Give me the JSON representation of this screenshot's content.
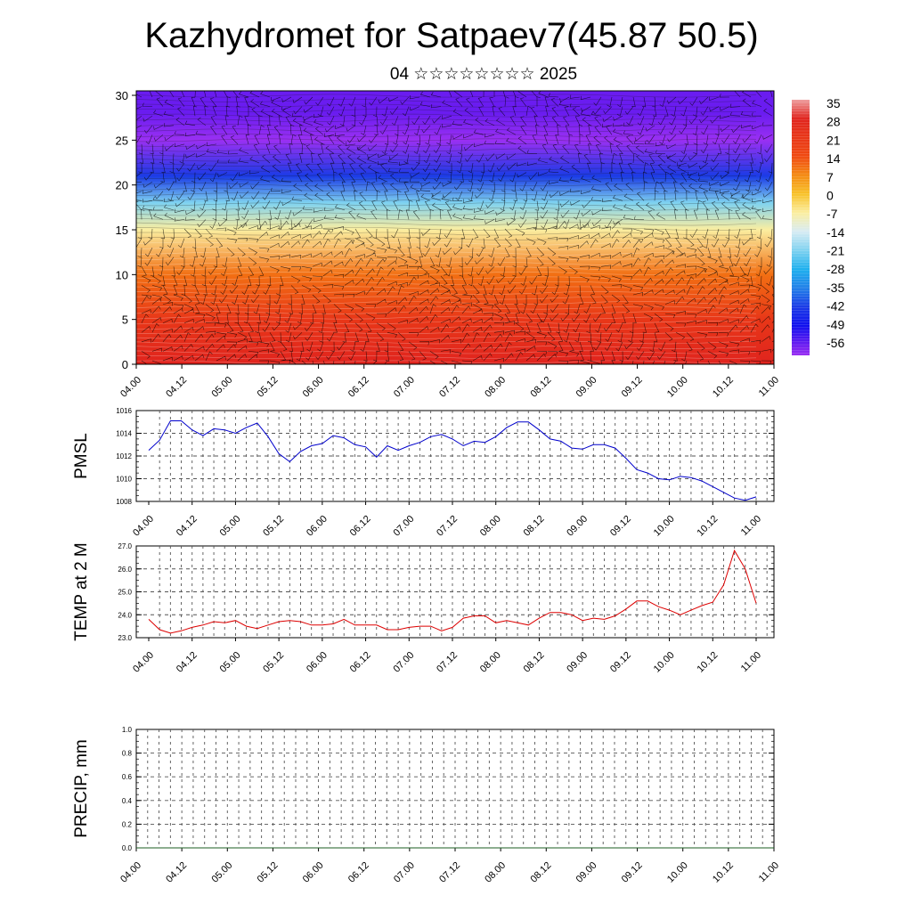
{
  "title": "Kazhydromet for Satpaev7(45.87 50.5)",
  "subtitle": "04 ☆☆☆☆☆☆☆☆ 2025",
  "time_labels": [
    "04.00",
    "04.12",
    "05.00",
    "05.12",
    "06.00",
    "06.12",
    "07.00",
    "07.12",
    "08.00",
    "08.12",
    "09.00",
    "09.12",
    "10.00",
    "10.12",
    "11.00"
  ],
  "chart_data": [
    {
      "type": "heatmap",
      "description_hidden": "",
      "x": [
        "04.00",
        "04.12",
        "05.00",
        "05.12",
        "06.00",
        "06.12",
        "07.00",
        "07.12",
        "08.00",
        "08.12",
        "09.00",
        "09.12",
        "10.00",
        "10.12",
        "11.00"
      ],
      "y_ticks": [
        0,
        5,
        10,
        15,
        20,
        25,
        30
      ],
      "ylim": [
        0,
        30.5
      ],
      "temperature_profile_by_height": [
        {
          "height": 0,
          "value": 28
        },
        {
          "height": 5,
          "value": 21
        },
        {
          "height": 10,
          "value": 10
        },
        {
          "height": 15,
          "value": -7
        },
        {
          "height": 18,
          "value": -21
        },
        {
          "height": 21,
          "value": -42
        },
        {
          "height": 25,
          "value": -60
        },
        {
          "height": 28,
          "value": -56
        },
        {
          "height": 30.5,
          "value": -56
        }
      ],
      "colorbar": {
        "labels": [
          "35",
          "28",
          "21",
          "14",
          "7",
          "0",
          "-7",
          "-14",
          "-21",
          "-28",
          "-35",
          "-42",
          "-49",
          "-56"
        ],
        "stops": [
          {
            "value": 35,
            "color": "#ee9e9e"
          },
          {
            "value": 28,
            "color": "#e0241e"
          },
          {
            "value": 14,
            "color": "#f04a12"
          },
          {
            "value": 7,
            "color": "#f48a14"
          },
          {
            "value": 0,
            "color": "#f8c22a"
          },
          {
            "value": -7,
            "color": "#fbeea0"
          },
          {
            "value": -14,
            "color": "#d8ecf4"
          },
          {
            "value": -21,
            "color": "#7fd2f0"
          },
          {
            "value": -28,
            "color": "#1eb0ee"
          },
          {
            "value": -35,
            "color": "#2280e8"
          },
          {
            "value": -42,
            "color": "#1b3be6"
          },
          {
            "value": -49,
            "color": "#1010ee"
          },
          {
            "value": -56,
            "color": "#6a1cf0"
          },
          {
            "value": -60,
            "color": "#9a30f2"
          }
        ]
      },
      "wind_barbs": "dense black wind barbs overlaid"
    },
    {
      "type": "line",
      "ylabel": "PMSL",
      "ylim": [
        1008,
        1016
      ],
      "y_ticks": [
        "1008",
        "1010",
        "1012",
        "1014",
        "1016"
      ],
      "color": "#0000cc",
      "series": [
        {
          "values": [
            1012.5,
            1013.4,
            1015.1,
            1015.1,
            1014.3,
            1013.8,
            1014.4,
            1014.3,
            1014.0,
            1014.5,
            1014.9,
            1013.7,
            1012.2,
            1011.5,
            1012.4,
            1012.9,
            1013.1,
            1013.8,
            1013.6,
            1013.0,
            1012.8,
            1011.9,
            1012.9,
            1012.5,
            1012.9,
            1013.2,
            1013.7,
            1013.9,
            1013.5,
            1012.9,
            1013.3,
            1013.2,
            1013.7,
            1014.5,
            1015.0,
            1015.0,
            1014.3,
            1013.5,
            1013.3,
            1012.7,
            1012.6,
            1013.0,
            1013.0,
            1012.7,
            1011.8,
            1010.8,
            1010.5,
            1010.0,
            1009.9,
            1010.2,
            1010.1,
            1009.8,
            1009.3,
            1008.8,
            1008.3,
            1008.1,
            1008.4
          ]
        }
      ]
    },
    {
      "type": "line",
      "ylabel": "TEMP at 2 M",
      "ylim": [
        23.0,
        27.0
      ],
      "y_ticks": [
        "23.0",
        "24.0",
        "25.0",
        "26.0",
        "27.0"
      ],
      "color": "#dd0000",
      "series": [
        {
          "values": [
            23.8,
            23.35,
            23.2,
            23.3,
            23.45,
            23.55,
            23.7,
            23.65,
            23.75,
            23.5,
            23.4,
            23.55,
            23.7,
            23.75,
            23.7,
            23.55,
            23.55,
            23.6,
            23.8,
            23.55,
            23.55,
            23.55,
            23.35,
            23.35,
            23.45,
            23.5,
            23.5,
            23.3,
            23.45,
            23.85,
            23.95,
            23.95,
            23.65,
            23.75,
            23.65,
            23.55,
            23.85,
            24.1,
            24.1,
            24.0,
            23.75,
            23.85,
            23.8,
            23.95,
            24.25,
            24.6,
            24.6,
            24.35,
            24.2,
            24.0,
            24.2,
            24.4,
            24.55,
            25.3,
            26.8,
            26.0,
            24.5
          ]
        }
      ]
    },
    {
      "type": "line",
      "ylabel": "PRECIP, mm",
      "ylim": [
        0.0,
        1.0
      ],
      "y_ticks": [
        "0.0",
        "0.2",
        "0.4",
        "0.6",
        "0.8",
        "1.0"
      ],
      "color": "#1b5e20",
      "series": [
        {
          "values": [
            0,
            0,
            0,
            0,
            0,
            0,
            0,
            0,
            0,
            0,
            0,
            0,
            0,
            0,
            0,
            0,
            0,
            0,
            0,
            0,
            0,
            0,
            0,
            0,
            0,
            0,
            0,
            0,
            0,
            0,
            0,
            0,
            0,
            0,
            0,
            0,
            0,
            0,
            0,
            0,
            0,
            0,
            0,
            0,
            0,
            0,
            0,
            0,
            0,
            0,
            0,
            0,
            0,
            0,
            0,
            0,
            0,
            0,
            0,
            0,
            0
          ]
        }
      ]
    }
  ]
}
